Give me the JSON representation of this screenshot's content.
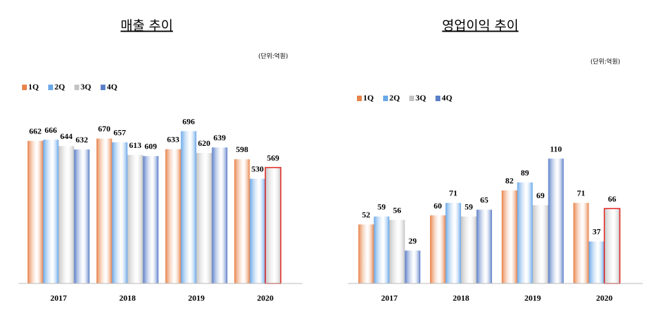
{
  "chart_data": [
    {
      "type": "bar",
      "title": "매출 추이",
      "unit": "(단위:억원)",
      "categories": [
        "2017",
        "2018",
        "2019",
        "2020"
      ],
      "series": [
        {
          "name": "1Q",
          "color": "#e8834a",
          "values": [
            662,
            670,
            633,
            598
          ]
        },
        {
          "name": "2Q",
          "color": "#6aa8e8",
          "values": [
            666,
            657,
            696,
            530
          ]
        },
        {
          "name": "3Q",
          "color": "#c4c4c4",
          "values": [
            644,
            613,
            620,
            569
          ]
        },
        {
          "name": "4Q",
          "color": "#5b7fc8",
          "values": [
            632,
            609,
            639,
            null
          ]
        }
      ],
      "ylim": [
        165,
        870
      ],
      "highlight": {
        "series": 2,
        "index": 3,
        "color": "#e0201c"
      }
    },
    {
      "type": "bar",
      "title": "영업이익 추이",
      "unit": "(단위:억원)",
      "categories": [
        "2017",
        "2018",
        "2019",
        "2020"
      ],
      "series": [
        {
          "name": "1Q",
          "color": "#e8834a",
          "values": [
            52,
            60,
            82,
            71
          ]
        },
        {
          "name": "2Q",
          "color": "#6aa8e8",
          "values": [
            59,
            71,
            89,
            37
          ]
        },
        {
          "name": "3Q",
          "color": "#c4c4c4",
          "values": [
            56,
            59,
            69,
            66
          ]
        },
        {
          "name": "4Q",
          "color": "#5b7fc8",
          "values": [
            29,
            65,
            110,
            null
          ]
        }
      ],
      "ylim": [
        0,
        120
      ],
      "highlight": {
        "series": 2,
        "index": 3,
        "color": "#e0201c"
      }
    }
  ]
}
